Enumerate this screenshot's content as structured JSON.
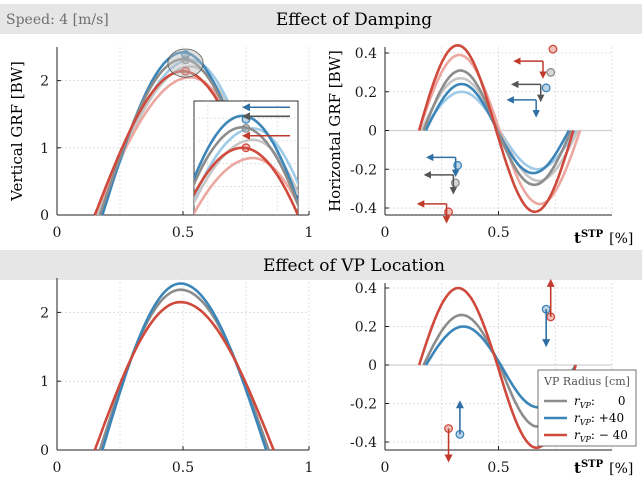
{
  "figure": {
    "speed_label": "Speed: 4 [m/s]",
    "section1_title": "Effect of Damping",
    "section2_title": "Effect of VP Location",
    "ylabel_vertical": "Vertical GRF [BW]",
    "ylabel_horizontal": "Horizontal GRF [BW]",
    "xlabel_main": "t",
    "xlabel_sup": "STP",
    "xlabel_unit": "[%]"
  },
  "legend": {
    "title": "VP Radius [cm]",
    "entries": [
      {
        "label_var": "r",
        "label_sub": "VP",
        "value": ":      0",
        "color": "#8c8c8c"
      },
      {
        "label_var": "r",
        "label_sub": "VP",
        "value": ": +40",
        "color": "#3c85b8"
      },
      {
        "label_var": "r",
        "label_sub": "VP",
        "value": ": − 40",
        "color": "#cf4a3c"
      }
    ]
  },
  "colors": {
    "gray": "#8c8c8c",
    "blue": "#3c85b8",
    "red": "#cf4a3c",
    "light_gray": "#c6c6c6",
    "light_blue": "#9fcbe8",
    "light_red": "#eca8a0"
  },
  "chart_data": [
    {
      "id": "damping-vertical",
      "type": "line",
      "xlim": [
        0,
        1
      ],
      "ylim": [
        0,
        2.5
      ],
      "xticks": [
        "0",
        "0.5",
        "1"
      ],
      "yticks": [
        "0",
        "1",
        "2"
      ],
      "ylabel": "Vertical GRF [BW]",
      "grid": true,
      "series": [
        {
          "color": "#9fcbe8",
          "x0": 0.17,
          "x1": 0.84,
          "peak": 2.31,
          "peak_x": 0.53
        },
        {
          "color": "#c6c6c6",
          "x0": 0.16,
          "x1": 0.84,
          "peak": 2.21,
          "peak_x": 0.53
        },
        {
          "color": "#eca8a0",
          "x0": 0.15,
          "x1": 0.85,
          "peak": 2.05,
          "peak_x": 0.53
        },
        {
          "color": "#3c85b8",
          "x0": 0.18,
          "x1": 0.81,
          "peak": 2.42,
          "peak_x": 0.5
        },
        {
          "color": "#8c8c8c",
          "x0": 0.17,
          "x1": 0.82,
          "peak": 2.32,
          "peak_x": 0.5
        },
        {
          "color": "#cf4a3c",
          "x0": 0.15,
          "x1": 0.83,
          "peak": 2.14,
          "peak_x": 0.5
        }
      ],
      "markers": [
        {
          "x": 0.51,
          "y": 2.39,
          "color": "#3c85b8"
        },
        {
          "x": 0.51,
          "y": 2.31,
          "color": "#8c8c8c"
        },
        {
          "x": 0.51,
          "y": 2.14,
          "color": "#cf4a3c"
        }
      ],
      "inset_region": {
        "x": [
          0.44,
          0.58
        ],
        "y": [
          2.05,
          2.47
        ]
      }
    },
    {
      "id": "damping-horizontal",
      "type": "line",
      "xlim": [
        0,
        1
      ],
      "ylim": [
        -0.45,
        0.45
      ],
      "xticks": [
        "0",
        "0.5"
      ],
      "yticks": [
        "0.4",
        "0.2",
        "0",
        "-0.2",
        "-0.4"
      ],
      "ylabel": "Horizontal GRF [BW]",
      "grid": true,
      "series": [
        {
          "color": "#9fcbe8",
          "x0": 0.17,
          "x1": 0.84,
          "minv": -0.2,
          "maxv": 0.2
        },
        {
          "color": "#c6c6c6",
          "x0": 0.16,
          "x1": 0.85,
          "minv": -0.26,
          "maxv": 0.27
        },
        {
          "color": "#eca8a0",
          "x0": 0.15,
          "x1": 0.86,
          "minv": -0.38,
          "maxv": 0.39
        },
        {
          "color": "#3c85b8",
          "x0": 0.18,
          "x1": 0.81,
          "minv": -0.22,
          "maxv": 0.24
        },
        {
          "color": "#8c8c8c",
          "x0": 0.17,
          "x1": 0.82,
          "minv": -0.28,
          "maxv": 0.31
        },
        {
          "color": "#cf4a3c",
          "x0": 0.15,
          "x1": 0.83,
          "minv": -0.42,
          "maxv": 0.44
        }
      ],
      "markers": [
        {
          "x": 0.32,
          "y": -0.18,
          "color": "#3c85b8"
        },
        {
          "x": 0.31,
          "y": -0.27,
          "color": "#8c8c8c"
        },
        {
          "x": 0.28,
          "y": -0.42,
          "color": "#cf4a3c"
        },
        {
          "x": 0.71,
          "y": 0.22,
          "color": "#3c85b8"
        },
        {
          "x": 0.73,
          "y": 0.3,
          "color": "#8c8c8c"
        },
        {
          "x": 0.74,
          "y": 0.42,
          "color": "#cf4a3c"
        }
      ]
    },
    {
      "id": "vp-vertical",
      "type": "line",
      "xlim": [
        0,
        1
      ],
      "ylim": [
        0,
        2.5
      ],
      "xticks": [
        "0",
        "0.5",
        "1"
      ],
      "yticks": [
        "0",
        "1",
        "2"
      ],
      "grid": true,
      "series": [
        {
          "color": "#8c8c8c",
          "x0": 0.17,
          "x1": 0.84,
          "peak": 2.33,
          "peak_x": 0.49
        },
        {
          "color": "#3c85b8",
          "x0": 0.18,
          "x1": 0.83,
          "peak": 2.42,
          "peak_x": 0.49
        },
        {
          "color": "#cf4a3c",
          "x0": 0.15,
          "x1": 0.86,
          "peak": 2.15,
          "peak_x": 0.49
        }
      ]
    },
    {
      "id": "vp-horizontal",
      "type": "line",
      "xlim": [
        0,
        1
      ],
      "ylim": [
        -0.45,
        0.45
      ],
      "xticks": [
        "0",
        "0.5"
      ],
      "yticks": [
        "0.4",
        "0.2",
        "0",
        "-0.2",
        "-0.4"
      ],
      "grid": true,
      "series": [
        {
          "color": "#8c8c8c",
          "x0": 0.17,
          "x1": 0.84,
          "minv": -0.32,
          "maxv": 0.26
        },
        {
          "color": "#3c85b8",
          "x0": 0.18,
          "x1": 0.84,
          "minv": -0.22,
          "maxv": 0.2
        },
        {
          "color": "#cf4a3c",
          "x0": 0.15,
          "x1": 0.84,
          "minv": -0.43,
          "maxv": 0.4
        }
      ],
      "markers": [
        {
          "x": 0.33,
          "y": -0.36,
          "color": "#3c85b8"
        },
        {
          "x": 0.28,
          "y": -0.33,
          "color": "#cf4a3c"
        },
        {
          "x": 0.71,
          "y": 0.29,
          "color": "#3c85b8"
        },
        {
          "x": 0.73,
          "y": 0.25,
          "color": "#cf4a3c"
        }
      ]
    }
  ]
}
